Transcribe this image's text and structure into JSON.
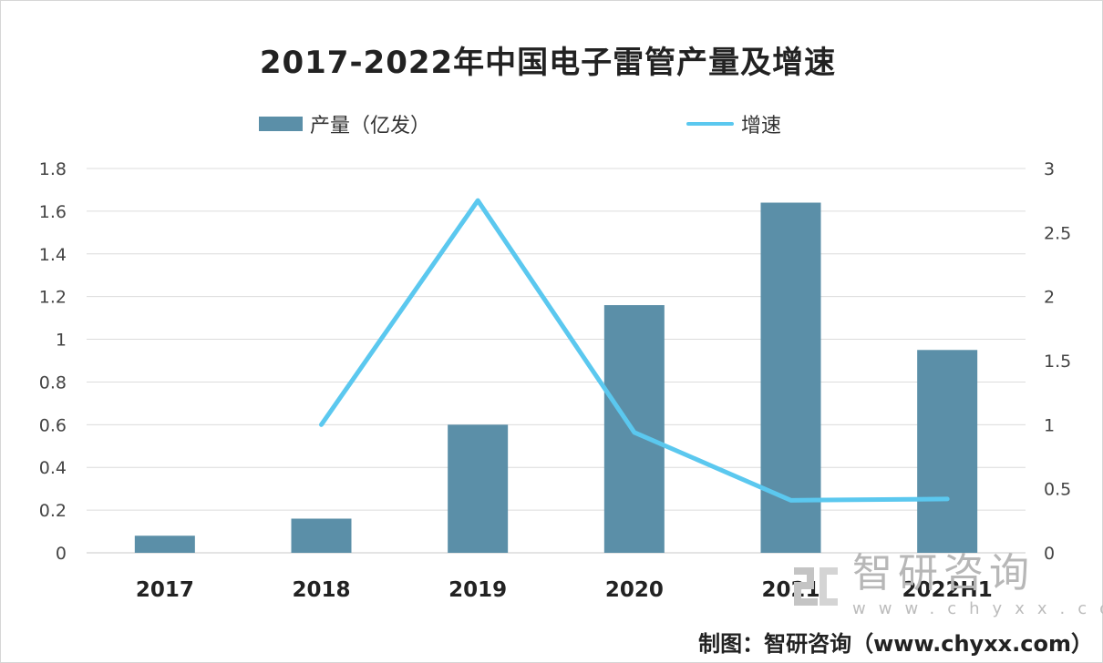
{
  "chart_data": {
    "type": "bar",
    "title": "2017-2022年中国电子雷管产量及增速",
    "categories": [
      "2017",
      "2018",
      "2019",
      "2020",
      "2021",
      "2022H1"
    ],
    "series": [
      {
        "name": "产量（亿发）",
        "type": "bar",
        "axis": "left",
        "color": "#5b8fa8",
        "values": [
          0.08,
          0.16,
          0.6,
          1.16,
          1.64,
          0.95
        ]
      },
      {
        "name": "增速",
        "type": "line",
        "axis": "right",
        "color": "#5bc8ef",
        "values": [
          null,
          1.0,
          2.75,
          0.94,
          0.41,
          0.42
        ]
      }
    ],
    "left_axis": {
      "ylim": [
        0,
        1.8
      ],
      "ticks": [
        "0",
        "0.2",
        "0.4",
        "0.6",
        "0.8",
        "1",
        "1.2",
        "1.4",
        "1.6",
        "1.8"
      ]
    },
    "right_axis": {
      "ylim": [
        0,
        3
      ],
      "ticks": [
        "0",
        "0.5",
        "1",
        "1.5",
        "2",
        "2.5",
        "3"
      ]
    },
    "grid": true,
    "legend_position": "top"
  },
  "watermark": {
    "main": "智研咨询",
    "sub": "www.chyxx.com"
  },
  "source": "制图：智研咨询（www.chyxx.com）"
}
